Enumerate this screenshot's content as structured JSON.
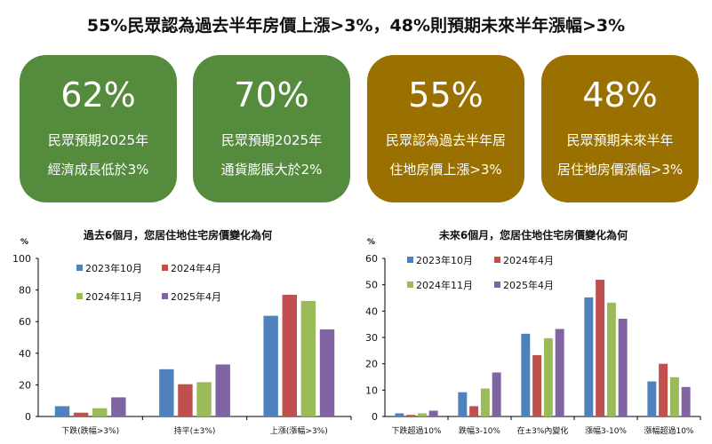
{
  "title": "55%民眾認為過去半年房價上漲>3%，48%則預期未來半年漲幅>3%",
  "cards": [
    {
      "value": "62%",
      "line1": "民眾預期2025年",
      "line2": "經濟成長低於3%",
      "color": "#548b3d"
    },
    {
      "value": "70%",
      "line1": "民眾預期2025年",
      "line2": "通貨膨脹大於2%",
      "color": "#548b3d"
    },
    {
      "value": "55%",
      "line1": "民眾認為過去半年居",
      "line2": "住地房價上漲>3%",
      "color": "#9a7000"
    },
    {
      "value": "48%",
      "line1": "民眾預期未來半年",
      "line2": "居住地房價漲幅>3%",
      "color": "#9a7000"
    }
  ],
  "chart_data": [
    {
      "type": "bar",
      "title": "過去6個月，您居住地住宅房價變化為何",
      "ylabel": "%",
      "ylim": [
        0,
        100
      ],
      "yticks": [
        0,
        20,
        40,
        60,
        80,
        100
      ],
      "categories": [
        "下跌(跌幅>3%)",
        "持平(±3%)",
        "上漲(漲幅>3%)"
      ],
      "series": [
        {
          "name": "2023年10月",
          "color": "#4f81bd",
          "values": [
            6.5,
            29.9,
            63.7
          ]
        },
        {
          "name": "2024年4月",
          "color": "#c0504d",
          "values": [
            2.4,
            20.4,
            77.0
          ]
        },
        {
          "name": "2024年11月",
          "color": "#9bbb59",
          "values": [
            5.2,
            21.7,
            73.1
          ]
        },
        {
          "name": "2025年4月",
          "color": "#8064a2",
          "values": [
            12.1,
            32.9,
            55.1
          ]
        }
      ],
      "legend": "top-left"
    },
    {
      "type": "bar",
      "title": "未來6個月，您居住地住宅房價變化為何",
      "ylabel": "%",
      "ylim": [
        0,
        60
      ],
      "yticks": [
        0,
        10,
        20,
        30,
        40,
        50,
        60
      ],
      "categories": [
        "下跌超過10%",
        "跌幅3-10%",
        "在±3%內變化",
        "漲幅3-10%",
        "漲幅超過10%"
      ],
      "series": [
        {
          "name": "2023年10月",
          "color": "#4f81bd",
          "values": [
            1.2,
            9.2,
            31.4,
            45.2,
            13.3
          ]
        },
        {
          "name": "2024年4月",
          "color": "#c0504d",
          "values": [
            0.6,
            3.9,
            23.3,
            51.9,
            20.0
          ]
        },
        {
          "name": "2024年11月",
          "color": "#9bbb59",
          "values": [
            1.2,
            10.6,
            29.7,
            43.2,
            14.9
          ]
        },
        {
          "name": "2025年4月",
          "color": "#8064a2",
          "values": [
            2.2,
            16.7,
            33.2,
            37.1,
            11.2
          ]
        }
      ],
      "legend": "top-left"
    }
  ]
}
